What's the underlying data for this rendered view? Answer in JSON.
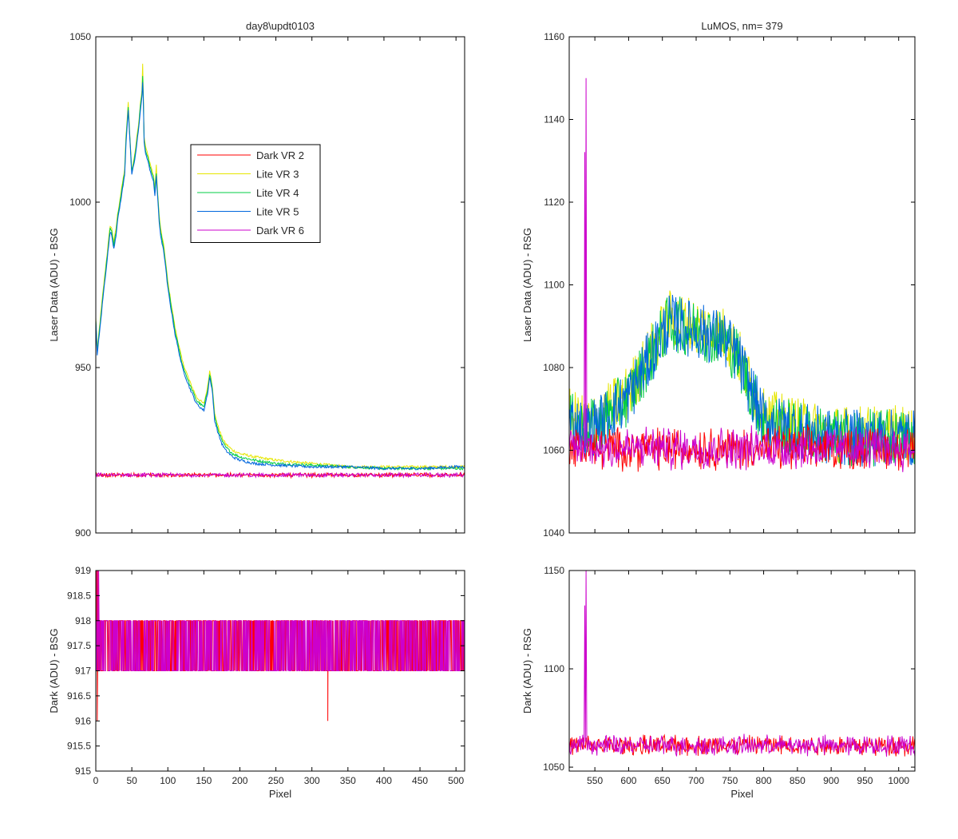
{
  "figure": {
    "background": "#ffffff",
    "axis_color": "#000000",
    "legend": {
      "placement": "upper-middle of top-left panel",
      "entries": [
        {
          "label": "Dark VR 2",
          "color": "#ff0000"
        },
        {
          "label": "Lite VR 3",
          "color": "#e6e600"
        },
        {
          "label": "Lite VR 4",
          "color": "#00cc44"
        },
        {
          "label": "Lite VR 5",
          "color": "#0066dd"
        },
        {
          "label": "Dark VR 6",
          "color": "#cc00cc"
        }
      ]
    }
  },
  "chart_data": [
    {
      "id": "top-left",
      "type": "line",
      "title": "day8\\updt0103",
      "xlabel": "",
      "ylabel": "Laser Data (ADU) - BSG",
      "xlim": [
        0,
        512
      ],
      "ylim": [
        900,
        1050
      ],
      "xticks": [
        0,
        50,
        100,
        150,
        200,
        250,
        300,
        350,
        400,
        450,
        500
      ],
      "xtick_labels": false,
      "yticks": [
        900,
        950,
        1000,
        1050
      ],
      "grid": false,
      "series": [
        {
          "name": "Lite VR 3",
          "color": "#e6e600",
          "x": [
            0,
            2,
            5,
            10,
            15,
            20,
            22,
            25,
            28,
            30,
            35,
            40,
            42,
            45,
            50,
            55,
            60,
            62,
            64,
            65,
            66,
            67,
            68,
            70,
            75,
            80,
            82,
            84,
            85,
            88,
            90,
            95,
            100,
            110,
            120,
            130,
            140,
            150,
            155,
            158,
            160,
            162,
            165,
            170,
            175,
            180,
            190,
            200,
            220,
            250,
            300,
            350,
            400,
            450,
            500,
            512
          ],
          "y": [
            965,
            955,
            962,
            973,
            983,
            993,
            992,
            988,
            992,
            996,
            1003,
            1010,
            1020,
            1030,
            1009,
            1016,
            1025,
            1030,
            1034,
            1042,
            1032,
            1020,
            1018,
            1016,
            1012,
            1008,
            1004,
            1011,
            1006,
            996,
            992,
            986,
            976,
            962,
            952,
            946,
            941,
            939,
            944,
            949,
            947,
            944,
            936,
            932,
            929,
            927,
            925,
            924,
            923,
            922,
            921,
            920,
            920,
            920,
            920,
            920
          ]
        },
        {
          "name": "Lite VR 4",
          "color": "#00cc44",
          "x": [
            0,
            2,
            5,
            10,
            15,
            20,
            22,
            25,
            28,
            30,
            35,
            40,
            42,
            45,
            50,
            55,
            60,
            62,
            64,
            65,
            66,
            67,
            68,
            70,
            75,
            80,
            82,
            84,
            85,
            88,
            90,
            95,
            100,
            110,
            120,
            130,
            140,
            150,
            155,
            158,
            160,
            162,
            165,
            170,
            175,
            180,
            190,
            200,
            220,
            250,
            300,
            350,
            400,
            450,
            500,
            512
          ],
          "y": [
            964,
            955,
            961,
            972,
            982,
            992,
            991,
            987,
            991,
            995,
            1002,
            1009,
            1019,
            1029,
            1009,
            1015,
            1024,
            1029,
            1033,
            1038,
            1031,
            1019,
            1017,
            1015,
            1011,
            1007,
            1003,
            1009,
            1005,
            995,
            991,
            985,
            975,
            961,
            951,
            945,
            940,
            938,
            943,
            948,
            946,
            943,
            935,
            931,
            928,
            926,
            924,
            923,
            922,
            921,
            920.5,
            920,
            919.5,
            919.5,
            919.5,
            919.5
          ]
        },
        {
          "name": "Lite VR 5",
          "color": "#0066dd",
          "x": [
            0,
            2,
            5,
            10,
            15,
            20,
            22,
            25,
            28,
            30,
            35,
            40,
            42,
            45,
            50,
            55,
            60,
            62,
            64,
            65,
            66,
            67,
            68,
            70,
            75,
            80,
            82,
            84,
            85,
            88,
            90,
            95,
            100,
            110,
            120,
            130,
            140,
            150,
            155,
            158,
            160,
            162,
            165,
            170,
            175,
            180,
            190,
            200,
            220,
            250,
            300,
            350,
            400,
            450,
            500,
            512
          ],
          "y": [
            964,
            954,
            960,
            971,
            981,
            991,
            990,
            986,
            990,
            994,
            1001,
            1008,
            1018,
            1028,
            1008,
            1014,
            1023,
            1028,
            1032,
            1036,
            1030,
            1018,
            1016,
            1014,
            1010,
            1006,
            1002,
            1008,
            1004,
            994,
            990,
            984,
            974,
            960,
            950,
            944,
            939,
            937,
            942,
            947,
            945,
            942,
            934,
            930,
            927,
            925,
            923,
            922,
            921,
            920.5,
            920,
            920,
            919.5,
            919.5,
            920,
            920
          ]
        },
        {
          "name": "Dark VR 2",
          "color": "#ff0000",
          "mean": 917.5,
          "noise": 0.5
        },
        {
          "name": "Dark VR 6",
          "color": "#cc00cc",
          "mean": 917.5,
          "noise": 0.5
        }
      ]
    },
    {
      "id": "top-right",
      "type": "line",
      "title": "LuMOS, nm= 379",
      "xlabel": "",
      "ylabel": "Laser Data (ADU) - RSG",
      "xlim": [
        512,
        1024
      ],
      "ylim": [
        1040,
        1160
      ],
      "xticks": [
        550,
        600,
        650,
        700,
        750,
        800,
        850,
        900,
        950,
        1000
      ],
      "xtick_labels": false,
      "yticks": [
        1040,
        1060,
        1080,
        1100,
        1120,
        1140,
        1160
      ],
      "grid": false,
      "series": [
        {
          "name": "Lite VR 3",
          "color": "#e6e600",
          "envelope_x": [
            512,
            540,
            560,
            600,
            640,
            660,
            700,
            740,
            760,
            780,
            800,
            850,
            900,
            950,
            1024
          ],
          "envelope_y": [
            1068,
            1066,
            1068,
            1074,
            1086,
            1092,
            1090,
            1088,
            1084,
            1076,
            1068,
            1066,
            1064,
            1064,
            1064
          ]
        },
        {
          "name": "Lite VR 4",
          "color": "#00cc44",
          "envelope_x": [
            512,
            540,
            560,
            600,
            640,
            660,
            700,
            740,
            760,
            780,
            800,
            850,
            900,
            950,
            1024
          ],
          "envelope_y": [
            1067,
            1065,
            1067,
            1073,
            1085,
            1091,
            1089,
            1087,
            1083,
            1075,
            1067,
            1065,
            1063,
            1063,
            1063
          ]
        },
        {
          "name": "Lite VR 5",
          "color": "#0066dd",
          "envelope_x": [
            512,
            540,
            560,
            600,
            640,
            660,
            700,
            740,
            760,
            780,
            800,
            850,
            900,
            950,
            1024
          ],
          "envelope_y": [
            1067,
            1065,
            1067,
            1073,
            1085,
            1091,
            1089,
            1087,
            1083,
            1075,
            1067,
            1065,
            1063,
            1063,
            1063
          ]
        },
        {
          "name": "Dark VR 2",
          "color": "#ff0000",
          "mean": 1060.5,
          "noise": 4
        },
        {
          "name": "Dark VR 6",
          "color": "#cc00cc",
          "mean": 1060.5,
          "noise": 4,
          "spike_x": 537,
          "spike_y": 1150
        }
      ]
    },
    {
      "id": "bottom-left",
      "type": "line",
      "title": "",
      "xlabel": "Pixel",
      "ylabel": "Dark (ADU) - BSG",
      "xlim": [
        0,
        512
      ],
      "ylim": [
        915,
        919
      ],
      "xticks": [
        0,
        50,
        100,
        150,
        200,
        250,
        300,
        350,
        400,
        450,
        500
      ],
      "xtick_labels": true,
      "yticks": [
        915,
        915.5,
        916,
        916.5,
        917,
        917.5,
        918,
        918.5,
        919
      ],
      "grid": false,
      "series": [
        {
          "name": "Dark VR 2",
          "color": "#ff0000",
          "levels": [
            917,
            918
          ],
          "dips": [
            {
              "x": 2,
              "y": 916
            },
            {
              "x": 322,
              "y": 916
            }
          ],
          "peaks": [
            {
              "x": 1,
              "y": 919
            },
            {
              "x": 3,
              "y": 919
            }
          ]
        },
        {
          "name": "Dark VR 6",
          "color": "#cc00cc",
          "levels": [
            917,
            918
          ],
          "peaks": [
            {
              "x": 2,
              "y": 919
            },
            {
              "x": 4,
              "y": 919
            }
          ]
        }
      ]
    },
    {
      "id": "bottom-right",
      "type": "line",
      "title": "",
      "xlabel": "Pixel",
      "ylabel": "Dark (ADU) - RSG",
      "xlim": [
        512,
        1024
      ],
      "ylim": [
        1048,
        1150
      ],
      "xticks": [
        550,
        600,
        650,
        700,
        750,
        800,
        850,
        900,
        950,
        1000
      ],
      "xtick_labels": true,
      "yticks": [
        1050,
        1100,
        1150
      ],
      "grid": false,
      "series": [
        {
          "name": "Dark VR 2",
          "color": "#ff0000",
          "mean": 1061,
          "noise": 4
        },
        {
          "name": "Dark VR 6",
          "color": "#cc00cc",
          "mean": 1061,
          "noise": 4,
          "spike_x": 537,
          "spike_y": 1150
        }
      ]
    }
  ]
}
